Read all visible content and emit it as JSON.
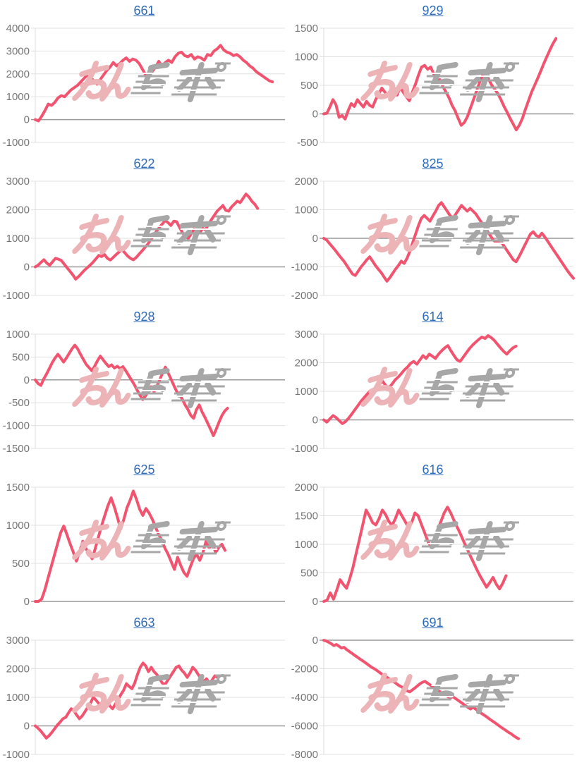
{
  "page": {
    "background": "#ffffff",
    "columns": 2,
    "rows": 5
  },
  "style": {
    "line_color": "#f2536e",
    "grid_color": "#e0e0e0",
    "baseline_color": "#999999",
    "axis_color": "#dcdcdc",
    "tick_label_color": "#757575",
    "link_color": "#2e6bb8"
  },
  "watermark": {
    "text": "みんレポ",
    "pink_color": "#edb4b8",
    "gray_color": "#a7a7a7"
  },
  "chart_data": [
    {
      "type": "line",
      "title": "661",
      "xlabel": "",
      "ylabel": "",
      "y_ticks": [
        4000,
        3000,
        2000,
        1000,
        0,
        -1000
      ],
      "ylim": [
        -1000,
        4000
      ],
      "x_end": 0.95,
      "values": [
        0,
        -60,
        150,
        400,
        680,
        620,
        750,
        950,
        1050,
        1000,
        1150,
        1300,
        1400,
        1500,
        1650,
        1800,
        1950,
        1850,
        1700,
        1550,
        1750,
        1950,
        2150,
        2300,
        2500,
        2350,
        2450,
        2600,
        2700,
        2550,
        2650,
        2600,
        2450,
        2200,
        1950,
        1900,
        2100,
        2300,
        2550,
        2350,
        2500,
        2600,
        2500,
        2750,
        2900,
        2950,
        2800,
        2750,
        2850,
        2650,
        2750,
        2700,
        2600,
        2850,
        2800,
        3000,
        3100,
        3250,
        3050,
        2950,
        2900,
        2800,
        2850,
        2750,
        2600,
        2500,
        2350,
        2250,
        2100,
        2000,
        1900,
        1800,
        1700,
        1650
      ]
    },
    {
      "type": "line",
      "title": "929",
      "xlabel": "",
      "ylabel": "",
      "y_ticks": [
        1500,
        1000,
        500,
        0,
        -500
      ],
      "ylim": [
        -500,
        1500
      ],
      "x_end": 0.93,
      "values": [
        0,
        10,
        120,
        250,
        160,
        -60,
        -30,
        -90,
        60,
        180,
        130,
        250,
        180,
        120,
        220,
        150,
        120,
        250,
        350,
        450,
        380,
        320,
        380,
        450,
        330,
        470,
        380,
        300,
        230,
        380,
        520,
        680,
        820,
        850,
        780,
        820,
        700,
        560,
        600,
        480,
        380,
        280,
        150,
        50,
        -80,
        -200,
        -150,
        -50,
        100,
        250,
        400,
        550,
        680,
        730,
        600,
        500,
        430,
        350,
        250,
        130,
        30,
        -80,
        -180,
        -280,
        -200,
        -80,
        80,
        230,
        380,
        500,
        620,
        750,
        880,
        1000,
        1120,
        1230,
        1320
      ]
    },
    {
      "type": "line",
      "title": "622",
      "xlabel": "",
      "ylabel": "",
      "y_ticks": [
        3000,
        2000,
        1000,
        0,
        -1000
      ],
      "ylim": [
        -1000,
        3000
      ],
      "x_end": 0.89,
      "values": [
        0,
        60,
        160,
        250,
        130,
        60,
        180,
        300,
        270,
        230,
        100,
        -30,
        -150,
        -280,
        -430,
        -340,
        -230,
        -120,
        -30,
        60,
        160,
        280,
        400,
        360,
        430,
        300,
        240,
        330,
        430,
        520,
        600,
        500,
        380,
        300,
        250,
        330,
        450,
        560,
        680,
        800,
        950,
        1100,
        1250,
        1380,
        1500,
        1620,
        1550,
        1450,
        1600,
        1580,
        1380,
        1200,
        1050,
        1000,
        1150,
        1320,
        1280,
        1200,
        1350,
        1300,
        1500,
        1650,
        1800,
        1950,
        2050,
        2150,
        1980,
        1950,
        2100,
        2200,
        2300,
        2250,
        2400,
        2550,
        2450,
        2300,
        2200,
        2050
      ]
    },
    {
      "type": "line",
      "title": "825",
      "xlabel": "",
      "ylabel": "",
      "y_ticks": [
        2000,
        1000,
        0,
        -1000,
        -2000
      ],
      "ylim": [
        -2000,
        2000
      ],
      "x_end": 1.0,
      "values": [
        0,
        -60,
        -180,
        -300,
        -420,
        -550,
        -680,
        -800,
        -950,
        -1100,
        -1250,
        -1300,
        -1150,
        -1000,
        -880,
        -750,
        -650,
        -800,
        -950,
        -1080,
        -1200,
        -1350,
        -1500,
        -1380,
        -1230,
        -1080,
        -950,
        -800,
        -880,
        -700,
        -450,
        -150,
        150,
        450,
        700,
        800,
        700,
        600,
        780,
        950,
        1150,
        1250,
        1100,
        950,
        800,
        700,
        850,
        1000,
        1150,
        1050,
        950,
        1050,
        950,
        850,
        700,
        550,
        400,
        250,
        100,
        -50,
        -150,
        -80,
        -150,
        -300,
        -450,
        -600,
        -750,
        -820,
        -650,
        -450,
        -250,
        -50,
        150,
        230,
        100,
        50,
        180,
        50,
        -100,
        -250,
        -400,
        -550,
        -700,
        -850,
        -1000,
        -1150,
        -1280,
        -1400
      ]
    },
    {
      "type": "line",
      "title": "928",
      "xlabel": "",
      "ylabel": "",
      "y_ticks": [
        1000,
        500,
        0,
        -500,
        -1000,
        -1500
      ],
      "ylim": [
        -1500,
        1000
      ],
      "x_end": 0.77,
      "values": [
        0,
        -80,
        -120,
        20,
        130,
        250,
        380,
        480,
        560,
        480,
        390,
        480,
        580,
        680,
        760,
        680,
        560,
        450,
        340,
        270,
        200,
        300,
        420,
        520,
        440,
        360,
        290,
        330,
        260,
        300,
        250,
        290,
        200,
        100,
        0,
        -100,
        -220,
        -330,
        -430,
        -350,
        -240,
        -150,
        -260,
        -140,
        0,
        150,
        280,
        150,
        20,
        -120,
        -250,
        -330,
        -420,
        -550,
        -650,
        -780,
        -840,
        -650,
        -550,
        -700,
        -820,
        -950,
        -1080,
        -1220,
        -1080,
        -920,
        -780,
        -680,
        -620
      ]
    },
    {
      "type": "line",
      "title": "614",
      "xlabel": "",
      "ylabel": "",
      "y_ticks": [
        3000,
        2000,
        1000,
        0,
        -1000
      ],
      "ylim": [
        -1000,
        3000
      ],
      "x_end": 0.77,
      "values": [
        0,
        -80,
        40,
        150,
        80,
        -30,
        -130,
        -60,
        60,
        200,
        350,
        500,
        650,
        780,
        900,
        1020,
        950,
        1100,
        1250,
        1350,
        1200,
        1120,
        1250,
        1400,
        1500,
        1620,
        1750,
        1850,
        1980,
        2050,
        1950,
        2100,
        2250,
        2150,
        2300,
        2230,
        2150,
        2300,
        2420,
        2520,
        2600,
        2420,
        2250,
        2100,
        2050,
        2200,
        2350,
        2500,
        2620,
        2720,
        2820,
        2900,
        2850,
        2950,
        2880,
        2780,
        2650,
        2520,
        2400,
        2300,
        2420,
        2520,
        2580
      ]
    },
    {
      "type": "line",
      "title": "625",
      "xlabel": "",
      "ylabel": "",
      "y_ticks": [
        1500,
        1000,
        500,
        0
      ],
      "ylim": [
        0,
        1500
      ],
      "x_end": 0.76,
      "values": [
        0,
        0,
        30,
        150,
        300,
        450,
        600,
        750,
        900,
        990,
        880,
        760,
        650,
        530,
        650,
        790,
        700,
        620,
        560,
        700,
        850,
        1000,
        1130,
        1260,
        1360,
        1240,
        1100,
        950,
        1080,
        1230,
        1330,
        1450,
        1340,
        1210,
        1130,
        1220,
        1160,
        1080,
        980,
        880,
        800,
        700,
        620,
        520,
        420,
        580,
        470,
        380,
        330,
        450,
        560,
        620,
        540,
        640,
        790,
        700,
        780,
        640,
        710,
        750,
        670
      ]
    },
    {
      "type": "line",
      "title": "616",
      "xlabel": "",
      "ylabel": "",
      "y_ticks": [
        2000,
        1500,
        1000,
        500,
        0
      ],
      "ylim": [
        0,
        2000
      ],
      "x_end": 0.73,
      "values": [
        0,
        20,
        150,
        40,
        200,
        380,
        300,
        230,
        400,
        600,
        850,
        1100,
        1350,
        1600,
        1500,
        1380,
        1340,
        1450,
        1600,
        1520,
        1400,
        1330,
        1450,
        1600,
        1500,
        1400,
        1300,
        1380,
        1550,
        1500,
        1350,
        1200,
        1050,
        950,
        1100,
        1250,
        1400,
        1550,
        1650,
        1550,
        1420,
        1300,
        1180,
        1050,
        930,
        800,
        680,
        560,
        450,
        350,
        250,
        330,
        420,
        300,
        220,
        320,
        450
      ]
    },
    {
      "type": "line",
      "title": "663",
      "xlabel": "",
      "ylabel": "",
      "y_ticks": [
        3000,
        2000,
        1000,
        0,
        -1000
      ],
      "ylim": [
        -1000,
        3000
      ],
      "x_end": 0.73,
      "values": [
        0,
        -80,
        -180,
        -300,
        -430,
        -340,
        -230,
        -100,
        30,
        130,
        250,
        300,
        450,
        600,
        520,
        380,
        250,
        350,
        500,
        650,
        800,
        1000,
        900,
        780,
        620,
        720,
        820,
        700,
        600,
        760,
        920,
        1100,
        1250,
        1480,
        1380,
        1300,
        1500,
        1800,
        2050,
        2200,
        2100,
        1900,
        2050,
        1900,
        1800,
        1650,
        1500,
        1450,
        1600,
        1750,
        1900,
        2050,
        2100,
        1950,
        1850,
        1700,
        1850,
        2050,
        1950,
        1800,
        1650,
        1550,
        1650,
        1500,
        1600,
        1750,
        1700
      ]
    },
    {
      "type": "line",
      "title": "691",
      "xlabel": "",
      "ylabel": "",
      "y_ticks": [
        0,
        -2000,
        -4000,
        -6000,
        -8000
      ],
      "ylim": [
        -8000,
        0
      ],
      "x_end": 0.78,
      "values": [
        0,
        -60,
        -150,
        -250,
        -380,
        -300,
        -420,
        -550,
        -500,
        -650,
        -780,
        -900,
        -1030,
        -1150,
        -1280,
        -1400,
        -1520,
        -1650,
        -1780,
        -1900,
        -2000,
        -2120,
        -2250,
        -2380,
        -2500,
        -2600,
        -2720,
        -2850,
        -2950,
        -3080,
        -3200,
        -3300,
        -3420,
        -3550,
        -3620,
        -3480,
        -3350,
        -3200,
        -3050,
        -2950,
        -2880,
        -3000,
        -3120,
        -3250,
        -3380,
        -3500,
        -3620,
        -3750,
        -3850,
        -3950,
        -4050,
        -3950,
        -4080,
        -4200,
        -4320,
        -4450,
        -4580,
        -4700,
        -4820,
        -4700,
        -4820,
        -4950,
        -5080,
        -5200,
        -5320,
        -5450,
        -5580,
        -5700,
        -5820,
        -5950,
        -6080,
        -6200,
        -6320,
        -6450,
        -6550,
        -6680,
        -6800,
        -6900
      ]
    }
  ]
}
